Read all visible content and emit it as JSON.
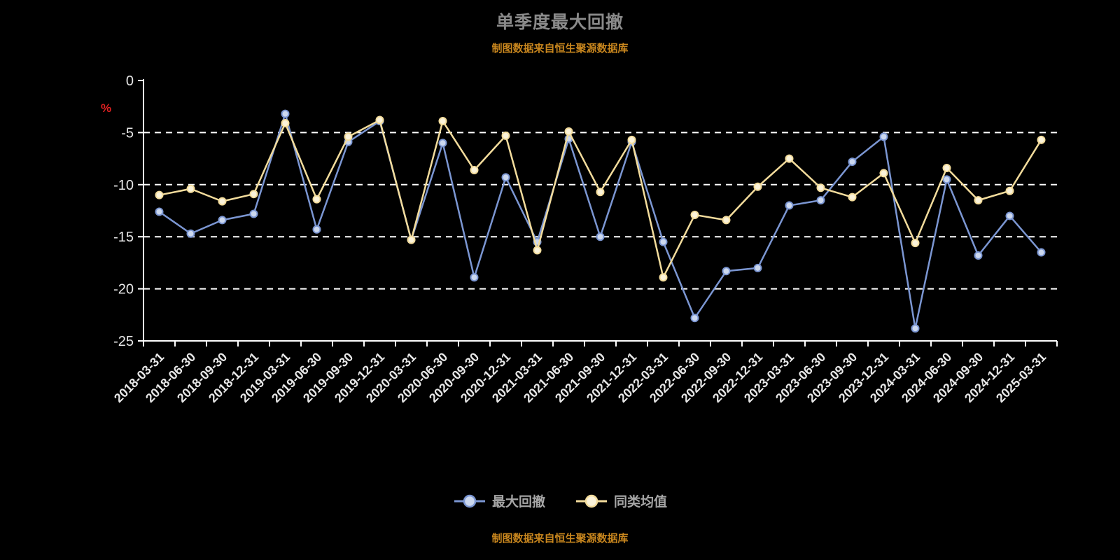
{
  "title": "单季度最大回撤",
  "subtitle": "制图数据来自恒生聚源数据库",
  "footer": "制图数据来自恒生聚源数据库",
  "colors": {
    "background": "#000000",
    "axis": "#ffffff",
    "tick_label": "#e8e8e8",
    "title": "#8a8a8a",
    "source_text": "#c8861e",
    "unit_label": "#e02020",
    "series_drawdown": "#7b96d2",
    "series_drawdown_fill": "#ccd8ee",
    "series_average": "#f3dc9c",
    "series_average_fill": "#fbf3da"
  },
  "chart_data": {
    "type": "line",
    "title": "单季度最大回撤",
    "xlabel": "",
    "ylabel": "%",
    "ylim": [
      -25,
      0
    ],
    "yticks": [
      0,
      -5,
      -10,
      -15,
      -20,
      -25
    ],
    "grid": true,
    "grid_style": "dashed",
    "legend_position": "bottom",
    "categories": [
      "2018-03-31",
      "2018-06-30",
      "2018-09-30",
      "2018-12-31",
      "2019-03-31",
      "2019-06-30",
      "2019-09-30",
      "2019-12-31",
      "2020-03-31",
      "2020-06-30",
      "2020-09-30",
      "2020-12-31",
      "2021-03-31",
      "2021-06-30",
      "2021-09-30",
      "2021-12-31",
      "2022-03-31",
      "2022-06-30",
      "2022-09-30",
      "2022-12-31",
      "2023-03-31",
      "2023-06-30",
      "2023-09-30",
      "2023-12-31",
      "2024-03-31",
      "2024-06-30",
      "2024-09-30",
      "2024-12-31",
      "2025-03-31"
    ],
    "series": [
      {
        "name": "最大回撤",
        "color": "#7b96d2",
        "marker_fill": "#ccd8ee",
        "values": [
          -12.6,
          -14.7,
          -13.4,
          -12.8,
          -3.2,
          -14.3,
          -5.9,
          -3.9,
          -15.3,
          -6.0,
          -18.9,
          -9.3,
          -15.5,
          -5.6,
          -15.0,
          -5.9,
          -15.5,
          -22.8,
          -18.3,
          -18.0,
          -12.0,
          -11.5,
          -7.8,
          -5.4,
          -23.8,
          -9.5,
          -16.8,
          -13.0,
          -16.5
        ]
      },
      {
        "name": "同类均值",
        "color": "#f3dc9c",
        "marker_fill": "#fbf3da",
        "values": [
          -11.0,
          -10.4,
          -11.6,
          -10.9,
          -4.1,
          -11.4,
          -5.4,
          -3.8,
          -15.3,
          -3.9,
          -8.6,
          -5.3,
          -16.3,
          -4.9,
          -10.7,
          -5.7,
          -18.9,
          -12.9,
          -13.4,
          -10.2,
          -7.5,
          -10.3,
          -11.2,
          -8.9,
          -15.6,
          -8.4,
          -11.5,
          -10.6,
          -5.7
        ]
      }
    ]
  }
}
